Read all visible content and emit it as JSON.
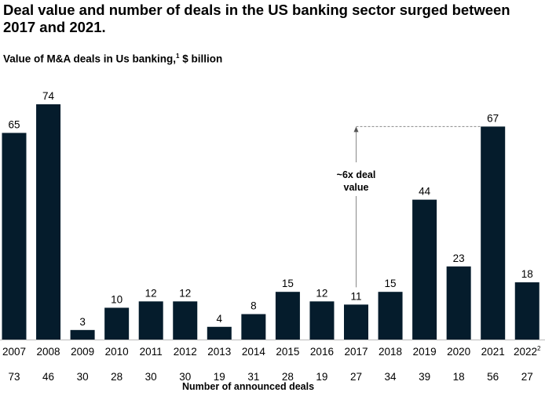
{
  "title": "Deal value and number of deals in the US banking sector surged between 2017 and 2021.",
  "chart_data": {
    "type": "bar",
    "title": "Value of M&A deals in Us banking,",
    "title_footnote": "1",
    "title_unit": "$ billion",
    "categories": [
      "2007",
      "2008",
      "2009",
      "2010",
      "2011",
      "2012",
      "2013",
      "2014",
      "2015",
      "2016",
      "2017",
      "2018",
      "2019",
      "2020",
      "2021",
      "2022"
    ],
    "category_footnotes": {
      "2022": "2"
    },
    "values": [
      65,
      74,
      3,
      10,
      12,
      12,
      4,
      8,
      15,
      12,
      11,
      15,
      44,
      23,
      67,
      18
    ],
    "deal_counts": [
      73,
      46,
      30,
      28,
      30,
      30,
      19,
      31,
      28,
      19,
      27,
      34,
      39,
      18,
      56,
      27
    ],
    "deal_counts_label": "Number of announced deals",
    "annotation": {
      "text_line1": "~6x deal",
      "text_line2": "value",
      "from": "2017",
      "to": "2021"
    },
    "bar_color": "#051c2c",
    "ylim": [
      0,
      74
    ],
    "grid": false,
    "legend": "none"
  }
}
